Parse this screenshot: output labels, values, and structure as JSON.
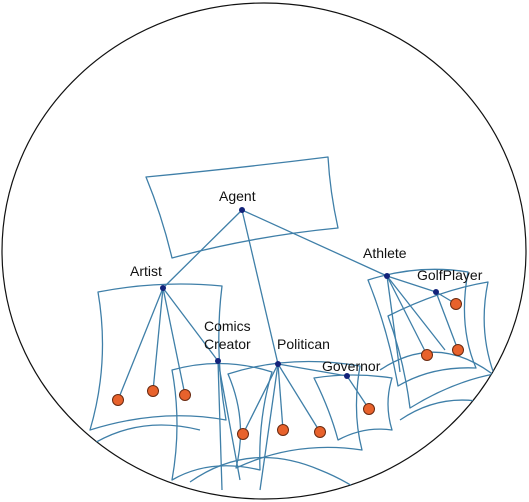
{
  "labels": {
    "agent": "Agent",
    "artist": "Artist",
    "athlete": "Athlete",
    "golfplayer": "GolfPlayer",
    "comics_line1": "Comics",
    "comics_line2": "Creator",
    "politican": "Politican",
    "governor": "Governor"
  },
  "colors": {
    "boundary": "#111111",
    "region_stroke": "#3f7fa8",
    "node": "#13237a",
    "leaf": "#e8622c"
  }
}
